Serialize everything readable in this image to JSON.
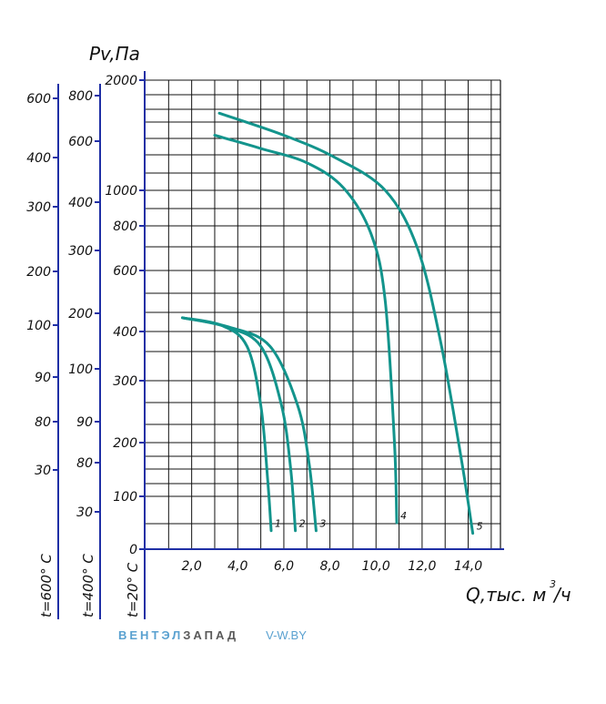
{
  "chart_data": {
    "type": "line",
    "ylabel": "Pv,Па",
    "xlabel_main": "Q,тыс. м",
    "xlabel_sup": "3",
    "xlabel_tail": "/ч",
    "x_ticks": [
      "2,0",
      "4,0",
      "6,0",
      "8,0",
      "10,0",
      "12,0",
      "14,0"
    ],
    "x_range": [
      0,
      15.4
    ],
    "y20_ticks": [
      "0",
      "100",
      "200",
      "300",
      "400",
      "600",
      "800",
      "1000",
      "2000"
    ],
    "y400_ticks": [
      "30",
      "80",
      "90",
      "100",
      "200",
      "300",
      "400",
      "600",
      "800"
    ],
    "y600_ticks": [
      "30",
      "80",
      "90",
      "100",
      "200",
      "300",
      "400",
      "600"
    ],
    "temp_labels": [
      "t=20° C",
      "t=400° C",
      "t=600° C"
    ],
    "y_scale": "nonlinear (0–2000 Pa at t=20° C)",
    "grid": true,
    "series": [
      {
        "name": "1",
        "color": "#13948c",
        "x": [
          1.6,
          3.3,
          4.4,
          5.0,
          5.3,
          5.45
        ],
        "y": [
          445,
          420,
          370,
          260,
          130,
          35
        ]
      },
      {
        "name": "2",
        "color": "#13948c",
        "x": [
          1.6,
          3.5,
          5.0,
          5.9,
          6.3,
          6.5
        ],
        "y": [
          445,
          415,
          370,
          260,
          150,
          35
        ]
      },
      {
        "name": "3",
        "color": "#13948c",
        "x": [
          1.6,
          3.6,
          5.4,
          6.6,
          7.1,
          7.4
        ],
        "y": [
          445,
          415,
          370,
          260,
          160,
          35
        ]
      },
      {
        "name": "4",
        "color": "#13948c",
        "x": [
          3.0,
          5.0,
          7.0,
          8.6,
          9.8,
          10.4,
          10.8,
          10.9
        ],
        "y": [
          1500,
          1380,
          1250,
          1020,
          760,
          500,
          200,
          50
        ]
      },
      {
        "name": "5",
        "color": "#13948c",
        "x": [
          3.2,
          6.0,
          8.2,
          10.4,
          11.8,
          12.8,
          13.7,
          14.2
        ],
        "y": [
          1700,
          1500,
          1300,
          1000,
          700,
          380,
          170,
          30
        ]
      }
    ]
  },
  "footer": {
    "brand_part1": "ВЕНТЭЛ",
    "brand_part2": "ЗАПАД",
    "site": "V-W.BY"
  }
}
